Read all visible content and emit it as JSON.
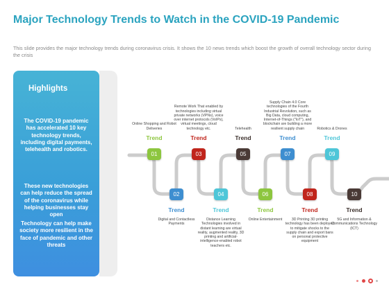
{
  "title": "Major Technology Trends to Watch in the COVID-19 Pandemic",
  "subtitle": "This slide provides the major technology trends during coronavirus crisis. It shows the 10 news trends which boost the growth of overall technology sector during the crisis",
  "highlights": {
    "heading": "Highlights",
    "points": [
      "The COVID-19 pandemic has accelerated 10 key technology trends, including digital payments, telehealth and robotics.",
      "These new technologies can help reduce the spread of the coronavirus while helping businesses stay open",
      "Technology can help make society more resilient in the face of pandemic and other threats"
    ]
  },
  "trend_word": "Trend",
  "trends": [
    {
      "num": "01",
      "label": "Online Shopping and Robot Deliveries",
      "color": "#8dc63f",
      "label_color": "#8dc63f"
    },
    {
      "num": "02",
      "label": "Digital and Contactless Payments",
      "color": "#3e8ed0",
      "label_color": "#3e8ed0"
    },
    {
      "num": "03",
      "label": "Remote Work That enabled by technologies including virtual private networks (VPNs), voice over internet protocols (VoIPs), virtual meetings, cloud technology etc.",
      "color": "#c0251c",
      "label_color": "#c0251c"
    },
    {
      "num": "04",
      "label": "Distance Learning Technologies involved in distant learning are virtual reality, augmented reality, 3D printing and artificial-intelligence-enabled robot teachers etc.",
      "color": "#4ec6d8",
      "label_color": "#4ec6d8"
    },
    {
      "num": "05",
      "label": "Telehealth",
      "color": "#4a3a36",
      "label_color": "#3a2e2a"
    },
    {
      "num": "06",
      "label": "Online Entertainment",
      "color": "#8dc63f",
      "label_color": "#8dc63f"
    },
    {
      "num": "07",
      "label": "Supply Chain 4.0 Core technologies of the Fourth Industrial Revolution, such as Big Data, cloud computing, Internet-of-Things (\"IoT\"), and blockchain are building a more resilient supply chain",
      "color": "#3e8ed0",
      "label_color": "#3e8ed0"
    },
    {
      "num": "08",
      "label": "3D Printing 3D printing technology has been deployed to mitigate shocks to the supply chain and export bans on personal protective equipment",
      "color": "#c0251c",
      "label_color": "#c0251c"
    },
    {
      "num": "09",
      "label": "Robotics & Drones",
      "color": "#4ec6d8",
      "label_color": "#4ec6d8"
    },
    {
      "num": "10",
      "label": "5G and Information & Communications Technology (ICT)",
      "color": "#4a3a36",
      "label_color": "#3a2e2a"
    }
  ]
}
